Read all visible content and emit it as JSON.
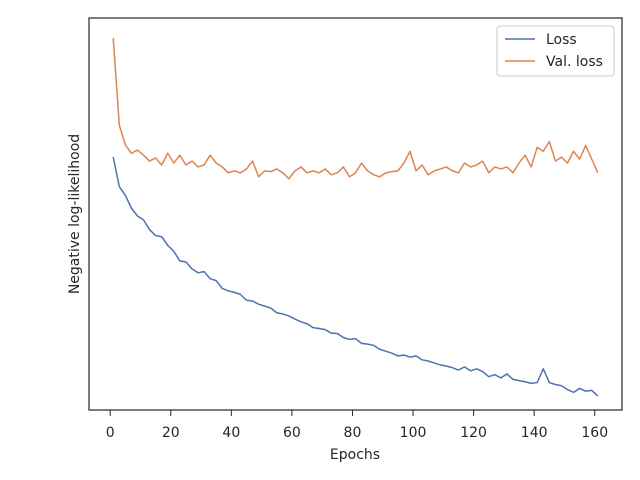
{
  "chart_data": {
    "type": "line",
    "x_label": "Epochs",
    "y_label": "Negative log-likelihood",
    "x": [
      1,
      3,
      5,
      7,
      9,
      11,
      13,
      15,
      17,
      19,
      21,
      23,
      25,
      27,
      29,
      31,
      33,
      35,
      37,
      39,
      41,
      43,
      45,
      47,
      49,
      51,
      53,
      55,
      57,
      59,
      61,
      63,
      65,
      67,
      69,
      71,
      73,
      75,
      77,
      79,
      81,
      83,
      85,
      87,
      89,
      91,
      93,
      95,
      97,
      99,
      101,
      103,
      105,
      107,
      109,
      111,
      113,
      115,
      117,
      119,
      121,
      123,
      125,
      127,
      129,
      131,
      133,
      135,
      137,
      139,
      141,
      143,
      145,
      147,
      149,
      151,
      153,
      155,
      157,
      159,
      161
    ],
    "series": [
      {
        "name": "Loss",
        "color": "#4c72b0",
        "values": [
          64.5,
          57,
          54.8,
          51.5,
          49.5,
          48.5,
          46,
          44.5,
          44.2,
          42,
          40.5,
          38,
          37.8,
          36,
          35,
          35.3,
          33.5,
          33,
          31,
          30.4,
          30,
          29.5,
          28,
          27.8,
          27,
          26.5,
          26,
          24.8,
          24.5,
          24,
          23.2,
          22.5,
          22,
          21,
          20.8,
          20.5,
          19.6,
          19.5,
          18.5,
          18,
          18.2,
          17,
          16.8,
          16.5,
          15.5,
          15,
          14.5,
          13.8,
          14,
          13.5,
          13.8,
          12.8,
          12.5,
          12,
          11.5,
          11.2,
          10.8,
          10.2,
          11,
          10,
          10.5,
          9.8,
          8.5,
          9,
          8.2,
          9.2,
          7.8,
          7.5,
          7.2,
          6.8,
          7,
          10.5,
          7,
          6.5,
          6.2,
          5.2,
          4.5,
          5.5,
          4.8,
          5,
          3.6
        ]
      },
      {
        "name": "Val. loss",
        "color": "#dd8452",
        "values": [
          94.9,
          72.7,
          67.6,
          65.5,
          66.3,
          65,
          63.5,
          64.3,
          62.5,
          65.5,
          63,
          65,
          62.5,
          63.5,
          62,
          62.5,
          65,
          63,
          62,
          60.5,
          61,
          60.5,
          61.5,
          63.5,
          59.5,
          61,
          60.8,
          61.5,
          60.5,
          59,
          61,
          62,
          60.5,
          61,
          60.5,
          61.5,
          60,
          60.5,
          62,
          59.5,
          60.5,
          63,
          61,
          60,
          59.5,
          60.5,
          60.8,
          61,
          63,
          66,
          61,
          62.5,
          60,
          61,
          61.5,
          62,
          61,
          60.5,
          63,
          62,
          62.5,
          63.5,
          60.5,
          62,
          61.5,
          62,
          60.5,
          63,
          65,
          62,
          67,
          66,
          68.5,
          63.5,
          64.5,
          63,
          66,
          64,
          67.5,
          64,
          60.5
        ]
      }
    ],
    "xlim": [
      -7,
      169
    ],
    "xticks": [
      0,
      20,
      40,
      60,
      80,
      100,
      120,
      140,
      160
    ],
    "ylim": [
      0,
      100
    ],
    "legend": "upper right",
    "grid": false
  }
}
